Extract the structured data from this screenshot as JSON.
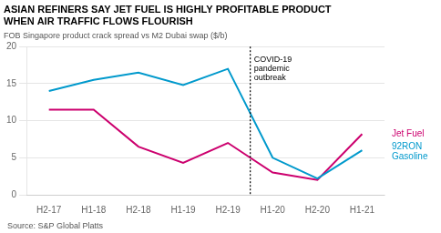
{
  "chart_data": {
    "type": "line",
    "title": "ASIAN REFINERS SAY JET FUEL IS HIGHLY PROFITABLE PRODUCT\nWHEN AIR TRAFFIC FLOWS FLOURISH",
    "subtitle": "FOB Singapore product crack spread vs M2 Dubai swap ($/b)",
    "source": "Source: S&P Global Platts",
    "categories": [
      "H2-17",
      "H1-18",
      "H2-18",
      "H1-19",
      "H2-19",
      "H1-20",
      "H2-20",
      "H1-21"
    ],
    "series": [
      {
        "name": "92RON\nGasoline",
        "color": "#0099CC",
        "values": [
          14.0,
          15.5,
          16.5,
          14.8,
          17.0,
          5.0,
          2.2,
          6.0
        ]
      },
      {
        "name": "Jet Fuel",
        "color": "#CC006E",
        "values": [
          11.5,
          11.5,
          6.5,
          4.3,
          7.0,
          3.0,
          2.0,
          8.2
        ]
      }
    ],
    "ylim": [
      0,
      20
    ],
    "yticks": [
      0,
      5,
      10,
      15,
      20
    ],
    "grid": true,
    "annotations": [
      {
        "text": "COVID-19\npandemic\noutbreak",
        "x": 4.5,
        "y": 18.8
      }
    ]
  }
}
